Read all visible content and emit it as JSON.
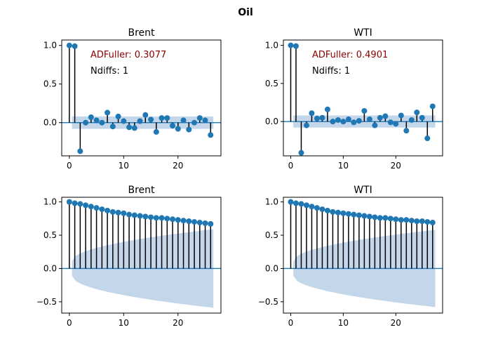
{
  "chart_data": {
    "title": "Oil",
    "type": "stem",
    "colors": {
      "marker": "#1f77b4",
      "band": "#c3d6ea",
      "stem": "#000000",
      "zero_line": "#1f77b4",
      "adf_text": "#8b0000",
      "ndiffs_text": "#000000"
    },
    "panels": [
      {
        "id": "acf-brent",
        "title": "Brent",
        "kind": "pacf-like",
        "xlim": [
          -1.4,
          27.9
        ],
        "ylim": [
          -0.43,
          1.07
        ],
        "xticks": [
          0,
          10,
          20
        ],
        "yticks": [
          0.0,
          0.5,
          1.0
        ],
        "ytick_labels": [
          "0.0",
          "0.5",
          "1.0"
        ],
        "band": {
          "type": "constant",
          "lags": [
            0.5,
            26.5
          ],
          "upper": 0.08,
          "lower": -0.08
        },
        "values": [
          1.0,
          0.99,
          -0.37,
          0.0,
          0.07,
          0.03,
          0.0,
          0.13,
          -0.05,
          0.08,
          0.02,
          -0.06,
          -0.07,
          0.02,
          0.1,
          0.04,
          -0.12,
          0.06,
          0.06,
          -0.04,
          -0.08,
          0.03,
          -0.09,
          0.0,
          0.06,
          0.03,
          -0.16
        ],
        "annotations": {
          "adf": "ADFuller: 0.3077",
          "ndiffs": "Ndiffs: 1"
        }
      },
      {
        "id": "acf-wti",
        "title": "WTI",
        "kind": "pacf-like",
        "xlim": [
          -1.4,
          28.9
        ],
        "ylim": [
          -0.45,
          1.07
        ],
        "xticks": [
          0,
          10,
          20
        ],
        "yticks": [
          0.0,
          0.5,
          1.0
        ],
        "ytick_labels": [
          "0.0",
          "0.5",
          "1.0"
        ],
        "band": {
          "type": "constant",
          "lags": [
            0.5,
            27.5
          ],
          "upper": 0.08,
          "lower": -0.08
        },
        "values": [
          1.0,
          0.99,
          -0.41,
          -0.05,
          0.11,
          0.04,
          0.05,
          0.16,
          0.0,
          0.02,
          0.0,
          0.03,
          -0.01,
          0.01,
          0.14,
          0.03,
          -0.05,
          0.05,
          0.07,
          -0.01,
          -0.03,
          0.08,
          -0.12,
          0.02,
          0.12,
          0.05,
          -0.22,
          0.2
        ],
        "annotations": {
          "adf": "ADFuller: 0.4901",
          "ndiffs": "Ndiffs: 1"
        }
      },
      {
        "id": "pacf-brent",
        "title": "Brent",
        "kind": "acf",
        "xlim": [
          -1.4,
          27.9
        ],
        "ylim": [
          -0.67,
          1.07
        ],
        "xticks": [
          0,
          10,
          20
        ],
        "yticks": [
          -0.5,
          0.0,
          0.5,
          1.0
        ],
        "ytick_labels": [
          "−0.5",
          "0.0",
          "0.5",
          "1.0"
        ],
        "band": {
          "type": "growing",
          "lags": [
            0.5,
            26.5
          ],
          "start": 0.11,
          "end": 0.59
        },
        "values": [
          1.0,
          0.98,
          0.97,
          0.95,
          0.93,
          0.91,
          0.89,
          0.87,
          0.85,
          0.84,
          0.83,
          0.81,
          0.8,
          0.79,
          0.78,
          0.77,
          0.76,
          0.76,
          0.75,
          0.74,
          0.73,
          0.72,
          0.71,
          0.7,
          0.69,
          0.68,
          0.67
        ],
        "annotations": null
      },
      {
        "id": "pacf-wti",
        "title": "WTI",
        "kind": "acf",
        "xlim": [
          -1.4,
          28.9
        ],
        "ylim": [
          -0.67,
          1.07
        ],
        "xticks": [
          0,
          10,
          20
        ],
        "yticks": [
          -0.5,
          0.0,
          0.5,
          1.0
        ],
        "ytick_labels": [
          "−0.5",
          "0.0",
          "0.5",
          "1.0"
        ],
        "band": {
          "type": "growing",
          "lags": [
            0.5,
            27.5
          ],
          "start": 0.11,
          "end": 0.58
        },
        "values": [
          1.0,
          0.98,
          0.97,
          0.95,
          0.93,
          0.91,
          0.89,
          0.87,
          0.85,
          0.84,
          0.83,
          0.82,
          0.81,
          0.8,
          0.79,
          0.78,
          0.77,
          0.76,
          0.76,
          0.75,
          0.74,
          0.73,
          0.73,
          0.72,
          0.71,
          0.71,
          0.7,
          0.69
        ],
        "annotations": null
      }
    ]
  }
}
